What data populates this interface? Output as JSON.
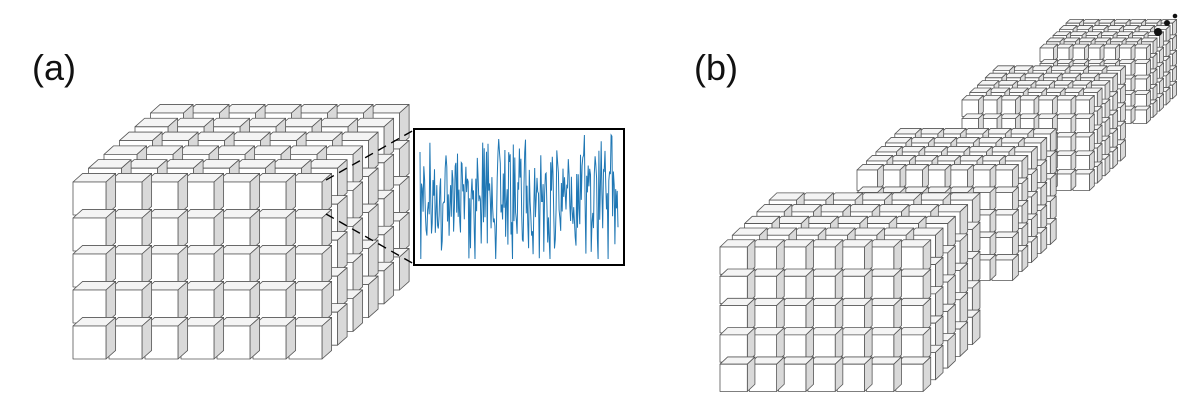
{
  "panel_a": {
    "label": "(a)",
    "grid": {
      "cols": 7,
      "rows": 5,
      "depth": 6
    },
    "inset": {
      "signal_color": "#1f77b4",
      "frame_color": "#000000",
      "leader_line": "dashed"
    }
  },
  "panel_b": {
    "label": "(b)",
    "grid": {
      "cols": 7,
      "rows": 5,
      "depth": 5
    },
    "blocks_drawn": 4,
    "continuation_marker": "dots"
  },
  "colors": {
    "cube_front": "#ffffff",
    "cube_top": "#f4f4f4",
    "cube_side": "#d9d9d9",
    "cube_edge": "#555555"
  }
}
